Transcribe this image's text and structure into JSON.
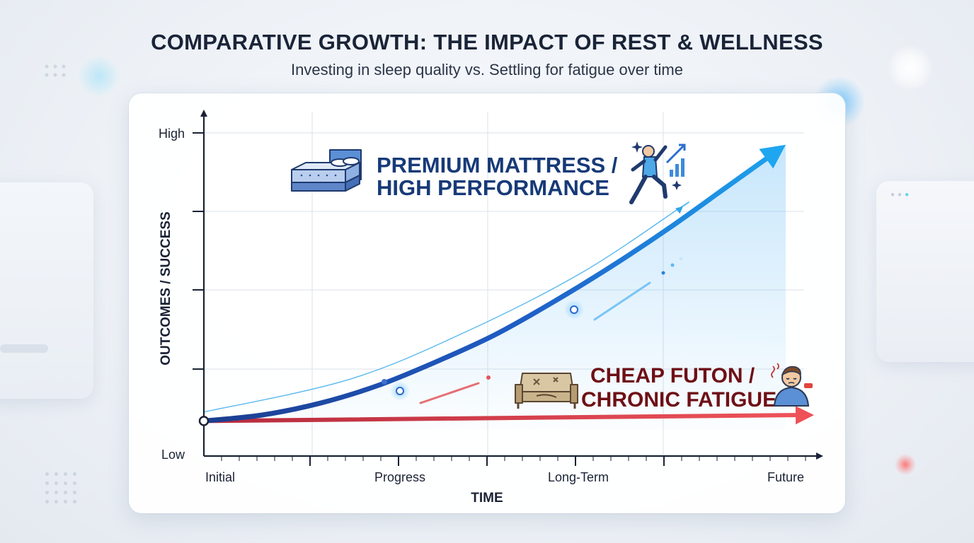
{
  "header": {
    "title": "COMPARATIVE GROWTH: THE IMPACT OF REST & WELLNESS",
    "subtitle": "Investing in sleep quality vs. Settling for fatigue over time"
  },
  "colors": {
    "premium": "#1f4fa8",
    "premium_highlight": "#1ea4ee",
    "futon": "#e84d55",
    "axis": "#1a2234",
    "grid": "#dbe1ea",
    "premium_text": "#173a78",
    "futon_text": "#6e1016"
  },
  "icons": {
    "premium": [
      "mattress-bed-icon",
      "jumping-person-growth-icon"
    ],
    "futon": [
      "worn-futon-icon",
      "tired-person-icon"
    ]
  },
  "chart_data": {
    "type": "line",
    "title": "COMPARATIVE GROWTH: THE IMPACT OF REST & WELLNESS",
    "subtitle": "Investing in sleep quality vs. Settling for fatigue over time",
    "xlabel": "TIME",
    "ylabel": "OUTCOMES / SUCCESS",
    "x_ticks": [
      "Initial",
      "Progress",
      "Long-Term",
      "Future"
    ],
    "y_ticks": [
      "Low",
      "High"
    ],
    "xlim": [
      0,
      10
    ],
    "ylim": [
      0,
      10
    ],
    "grid": true,
    "series": [
      {
        "name": "PREMIUM MATTRESS / HIGH PERFORMANCE",
        "x": [
          0,
          1,
          2,
          3,
          4,
          5,
          6,
          7,
          8,
          9,
          10
        ],
        "y": [
          0.3,
          0.5,
          0.9,
          1.5,
          2.3,
          3.2,
          4.3,
          5.5,
          6.8,
          8.2,
          9.6
        ]
      },
      {
        "name": "CHEAP FUTON / CHRONIC FATIGUE",
        "x": [
          0,
          10
        ],
        "y": [
          0.3,
          0.5
        ]
      }
    ]
  }
}
